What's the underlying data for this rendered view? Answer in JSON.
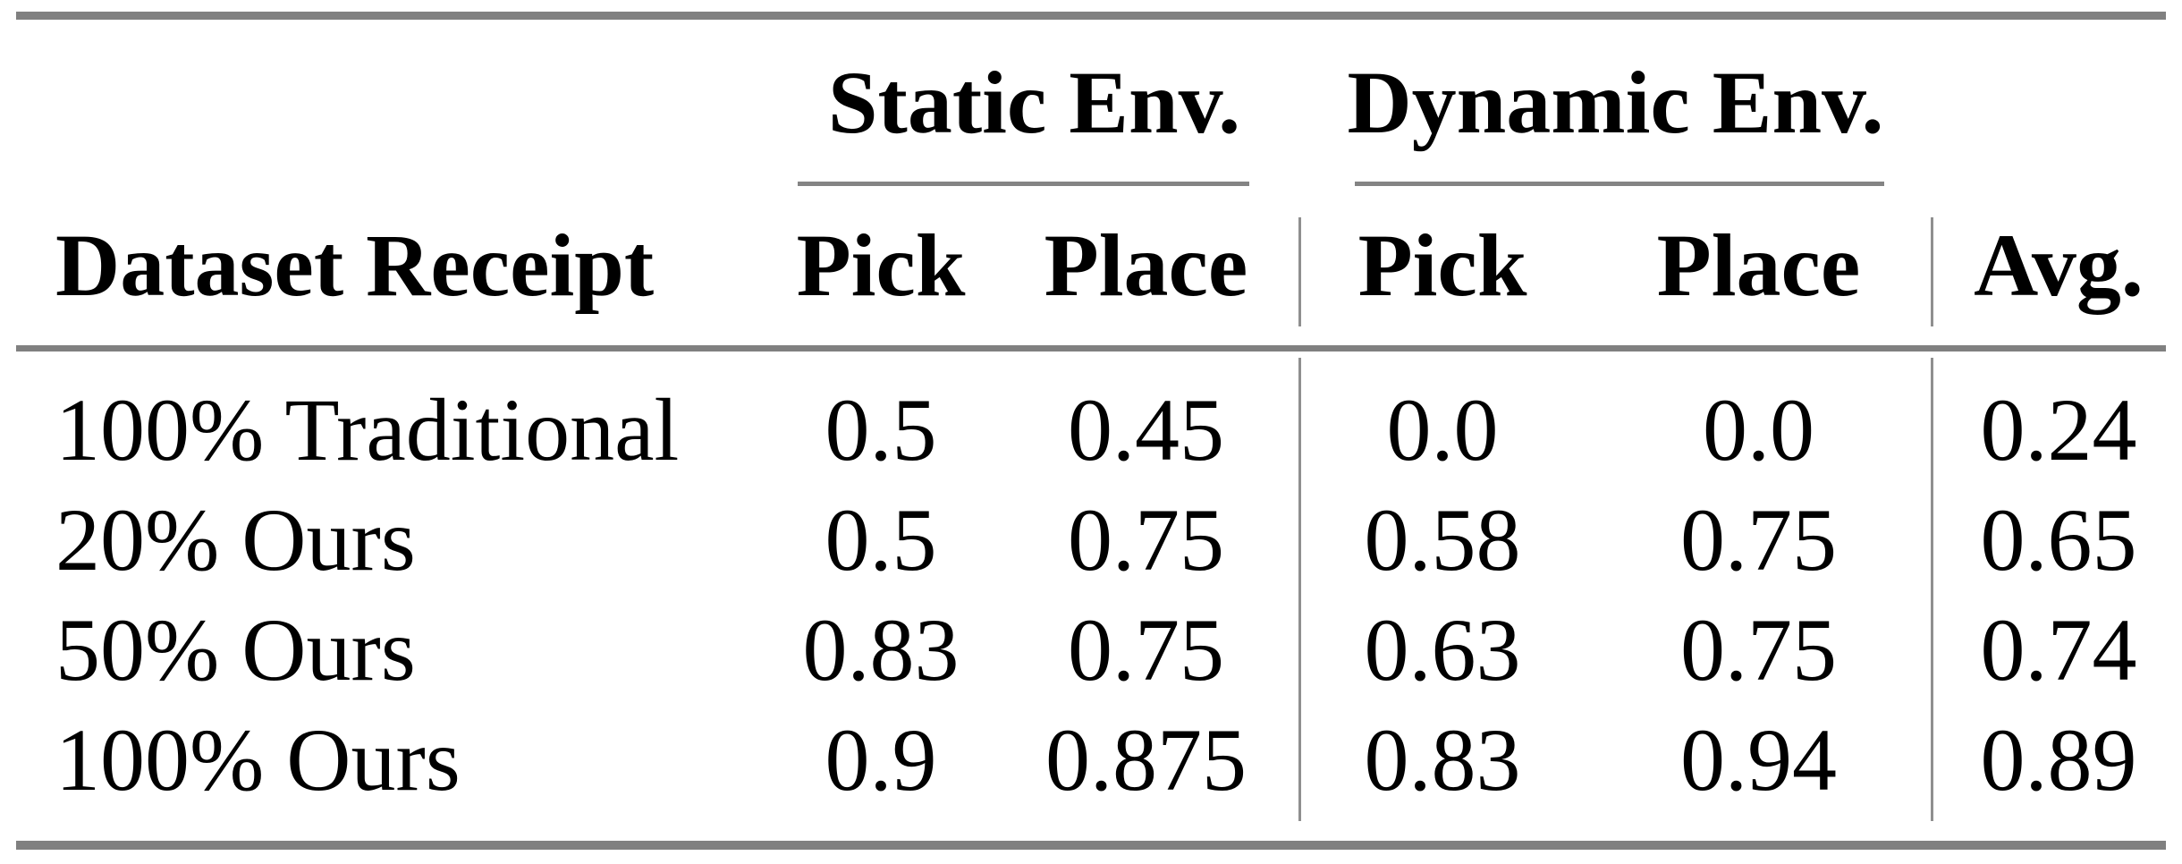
{
  "page": {
    "background_color": "#ffffff",
    "text_color": "#000000",
    "rule_color": "#808080"
  },
  "table": {
    "group_headers": {
      "static": "Static Env.",
      "dynamic": "Dynamic Env."
    },
    "column_headers": {
      "row_label": "Dataset Receipt",
      "static_pick": "Pick",
      "static_place": "Place",
      "dynamic_pick": "Pick",
      "dynamic_place": "Place",
      "avg": "Avg."
    },
    "rows": [
      {
        "label": "100% Traditional",
        "static_pick": "0.5",
        "static_place": "0.45",
        "dynamic_pick": "0.0",
        "dynamic_place": "0.0",
        "avg": "0.24"
      },
      {
        "label": "20% Ours",
        "static_pick": "0.5",
        "static_place": "0.75",
        "dynamic_pick": "0.58",
        "dynamic_place": "0.75",
        "avg": "0.65"
      },
      {
        "label": "50% Ours",
        "static_pick": "0.83",
        "static_place": "0.75",
        "dynamic_pick": "0.63",
        "dynamic_place": "0.75",
        "avg": "0.74"
      },
      {
        "label": "100% Ours",
        "static_pick": "0.9",
        "static_place": "0.875",
        "dynamic_pick": "0.83",
        "dynamic_place": "0.94",
        "avg": "0.89"
      }
    ]
  },
  "chart_data": {
    "type": "table",
    "title": "",
    "column_groups": [
      {
        "label": "Static Env.",
        "columns": [
          "Pick",
          "Place"
        ]
      },
      {
        "label": "Dynamic Env.",
        "columns": [
          "Pick",
          "Place"
        ]
      }
    ],
    "columns": [
      "Dataset Receipt",
      "Static Env. Pick",
      "Static Env. Place",
      "Dynamic Env. Pick",
      "Dynamic Env. Place",
      "Avg."
    ],
    "rows": [
      [
        "100% Traditional",
        0.5,
        0.45,
        0.0,
        0.0,
        0.24
      ],
      [
        "20% Ours",
        0.5,
        0.75,
        0.58,
        0.75,
        0.65
      ],
      [
        "50% Ours",
        0.83,
        0.75,
        0.63,
        0.75,
        0.74
      ],
      [
        "100% Ours",
        0.9,
        0.875,
        0.83,
        0.94,
        0.89
      ]
    ]
  }
}
